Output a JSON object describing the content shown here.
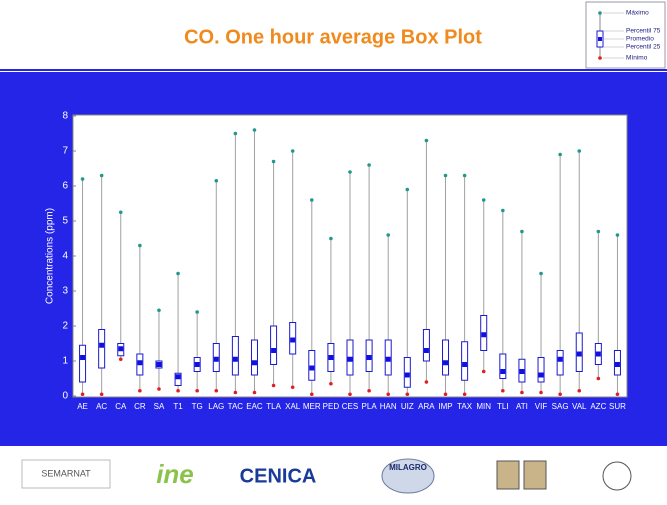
{
  "chart_data": {
    "type": "box",
    "title": "CO. One hour average Box Plot",
    "y_label": "Concentrations (ppm)",
    "categories": [
      "AE",
      "AC",
      "CA",
      "CR",
      "SA",
      "T1",
      "TG",
      "LAG",
      "TAC",
      "EAC",
      "TLA",
      "XAL",
      "MER",
      "PED",
      "CES",
      "PLA",
      "HAN",
      "UIZ",
      "ARA",
      "IMP",
      "TAX",
      "MIN",
      "TLI",
      "ATI",
      "VIF",
      "SAG",
      "VAL",
      "AZC",
      "SUR"
    ],
    "series": [
      {
        "name": "Máximo",
        "color": "#1f9a8a",
        "values": [
          6.2,
          6.3,
          5.25,
          4.3,
          2.45,
          3.5,
          2.4,
          6.15,
          7.5,
          7.6,
          6.7,
          7.0,
          5.6,
          4.5,
          6.4,
          6.6,
          4.6,
          5.9,
          7.3,
          6.3,
          6.3,
          5.6,
          5.3,
          4.7,
          3.5,
          6.9,
          7.0,
          4.7,
          4.6
        ]
      },
      {
        "name": "Percentil 75",
        "color": "#1a1ad0",
        "values": [
          1.45,
          1.9,
          1.5,
          1.2,
          1.0,
          0.65,
          1.1,
          1.5,
          1.7,
          1.6,
          2.0,
          2.1,
          1.3,
          1.5,
          1.6,
          1.6,
          1.6,
          1.1,
          1.9,
          1.6,
          1.55,
          2.3,
          1.2,
          1.05,
          1.1,
          1.3,
          1.8,
          1.5,
          1.3
        ]
      },
      {
        "name": "Promedio",
        "color": "#1010e0",
        "values": [
          1.1,
          1.45,
          1.35,
          0.95,
          0.9,
          0.55,
          0.9,
          1.05,
          1.05,
          0.95,
          1.3,
          1.6,
          0.8,
          1.1,
          1.05,
          1.1,
          1.05,
          0.6,
          1.3,
          0.95,
          0.9,
          1.75,
          0.7,
          0.7,
          0.6,
          1.05,
          1.2,
          1.2,
          0.9
        ]
      },
      {
        "name": "Percentil 25",
        "color": "#1a1ad0",
        "values": [
          0.4,
          0.8,
          1.15,
          0.6,
          0.8,
          0.3,
          0.7,
          0.7,
          0.6,
          0.6,
          0.9,
          1.2,
          0.45,
          0.7,
          0.6,
          0.7,
          0.6,
          0.25,
          1.0,
          0.6,
          0.45,
          1.3,
          0.5,
          0.4,
          0.4,
          0.6,
          0.7,
          0.9,
          0.6
        ]
      },
      {
        "name": "Mínimo",
        "color": "#e02020",
        "values": [
          0.05,
          0.05,
          1.05,
          0.15,
          0.2,
          0.15,
          0.15,
          0.15,
          0.1,
          0.1,
          0.3,
          0.25,
          0.05,
          0.35,
          0.05,
          0.15,
          0.05,
          0.05,
          0.4,
          0.05,
          0.05,
          0.7,
          0.15,
          0.1,
          0.1,
          0.05,
          0.15,
          0.5,
          0.05
        ]
      }
    ],
    "ylim": [
      0,
      8
    ],
    "yticks": [
      0,
      1,
      2,
      3,
      4,
      5,
      6,
      7,
      8
    ]
  },
  "footer": {
    "logos": [
      "SEMARNAT",
      "ine",
      "CENICA",
      "MILAGRO"
    ]
  }
}
